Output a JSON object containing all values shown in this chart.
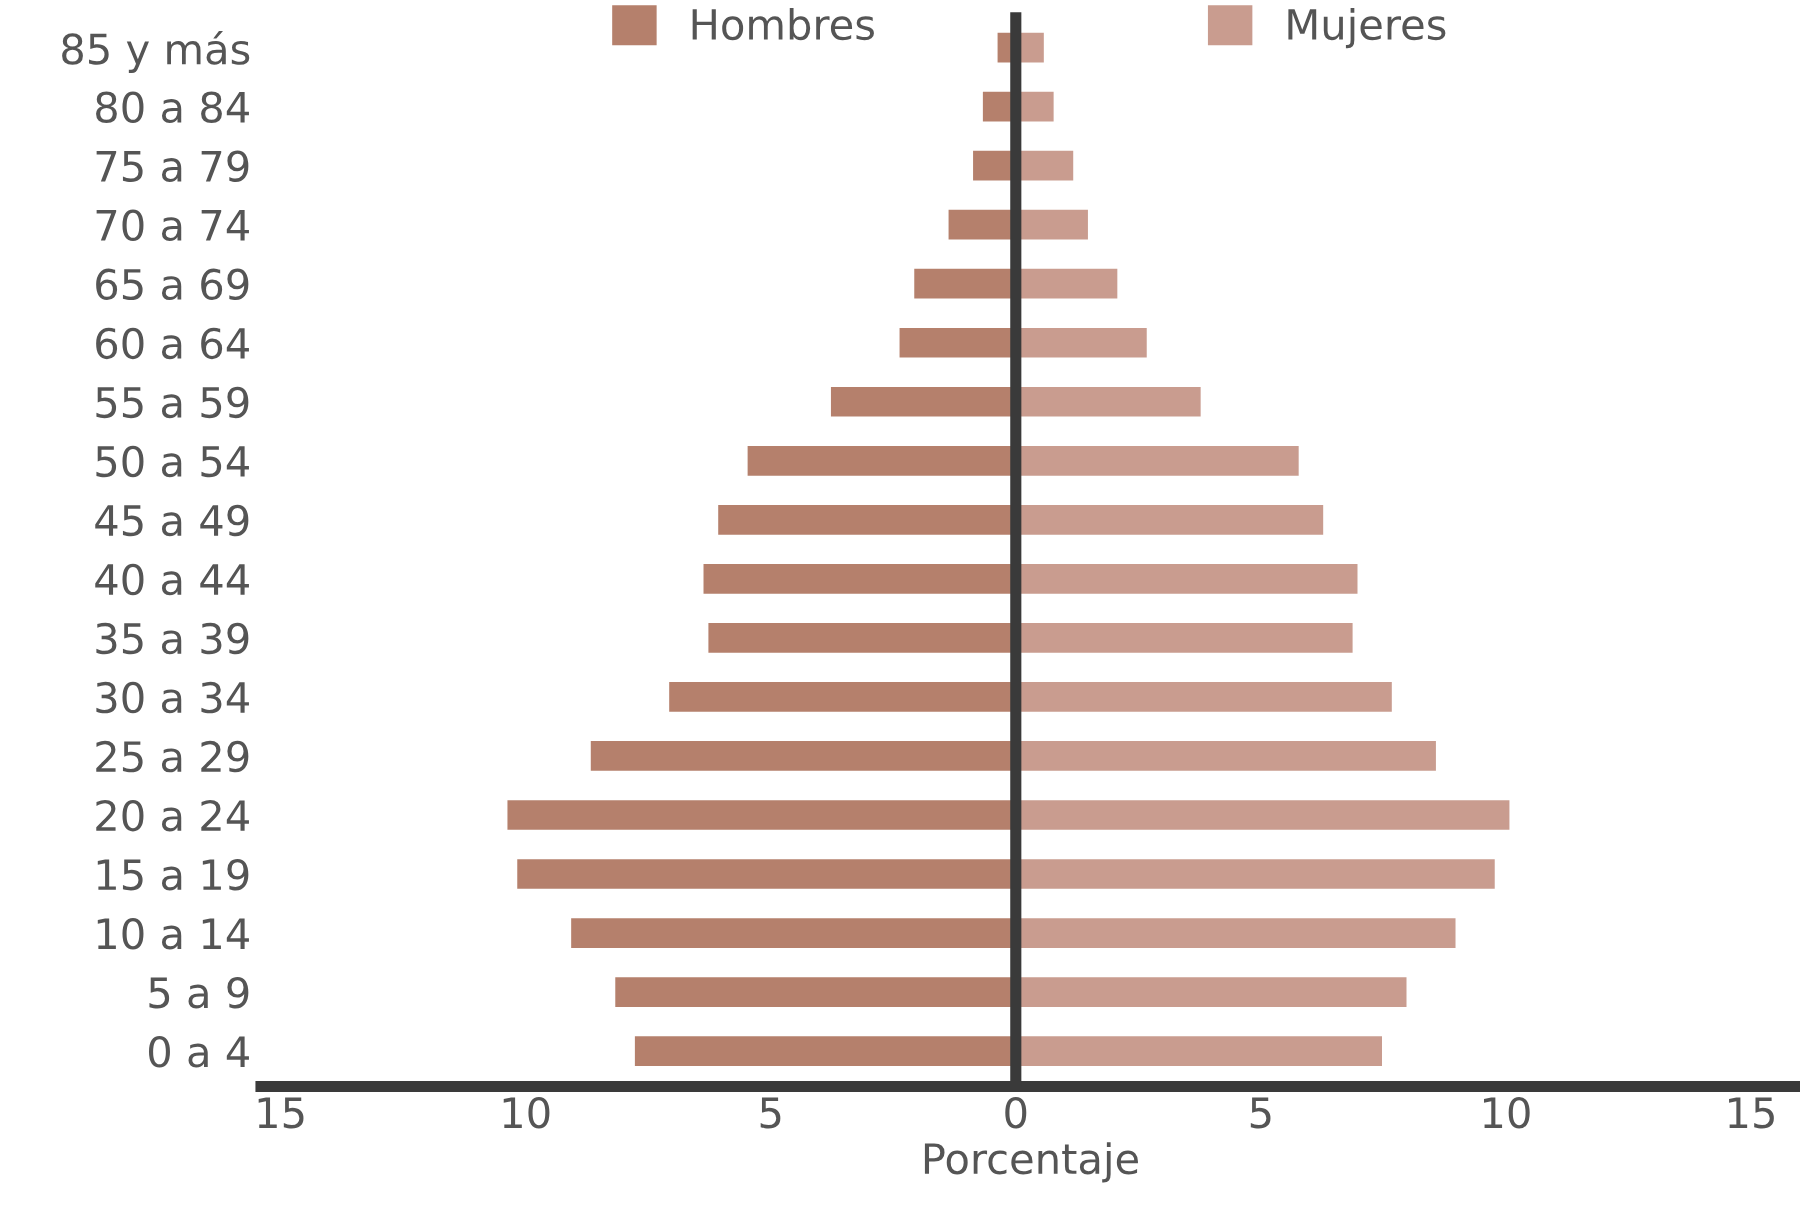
{
  "chart_data": {
    "type": "bar",
    "orientation": "horizontal",
    "xlabel": "Porcentaje",
    "categories": [
      "85 y más",
      "80 a 84",
      "75 a 79",
      "70 a 74",
      "65 a 69",
      "60 a 64",
      "55 a 59",
      "50 a 54",
      "45 a 49",
      "40 a 44",
      "35 a 39",
      "30 a 34",
      "25 a 29",
      "20 a 24",
      "15 a 19",
      "10 a 14",
      "5 a 9",
      "0 a 4"
    ],
    "series": [
      {
        "name": "Hombres",
        "color": "#b5806c",
        "values": [
          -0.4,
          -0.7,
          -0.9,
          -1.4,
          -2.1,
          -2.4,
          -3.8,
          -5.5,
          -6.1,
          -6.4,
          -6.3,
          -7.1,
          -8.7,
          -10.4,
          -10.2,
          -9.1,
          -8.2,
          -7.8
        ]
      },
      {
        "name": "Mujeres",
        "color": "#c99c8f",
        "values": [
          0.6,
          0.8,
          1.2,
          1.5,
          2.1,
          2.7,
          3.8,
          5.8,
          6.3,
          7.0,
          6.9,
          7.7,
          8.6,
          10.1,
          9.8,
          9.0,
          8.0,
          7.5
        ]
      }
    ],
    "xlim": [
      -15.4,
      16
    ],
    "xticks": [
      {
        "value": -15,
        "label": "15"
      },
      {
        "value": -10,
        "label": "10"
      },
      {
        "value": -5,
        "label": "5"
      },
      0,
      5,
      10,
      15
    ],
    "ref_lines": [
      {
        "axis": "x",
        "value": 0,
        "color": "#3a3a3a"
      }
    ],
    "stacked": true,
    "grid": false,
    "legend": "top"
  }
}
